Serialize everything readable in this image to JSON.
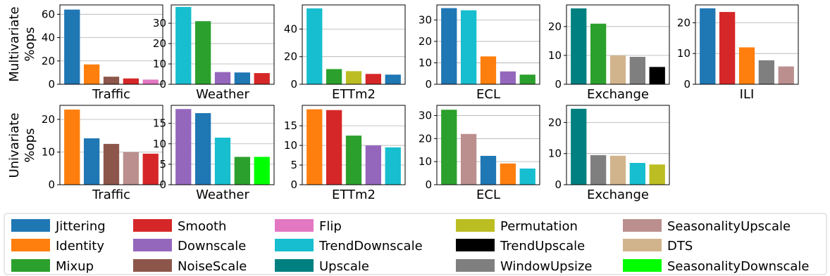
{
  "colors": {
    "Jittering": "#1f77b4",
    "Identity": "#ff7f0e",
    "Mixup": "#2ca02c",
    "Smooth": "#d62728",
    "Downscale": "#9467bd",
    "NoiseScale": "#8c564b",
    "Flip": "#e377c2",
    "TrendDownscale": "#17becf",
    "Upscale": "#008080",
    "Permutation": "#bcbd22",
    "TrendUpscale": "#000000",
    "WindowUpsize": "#7f7f7f",
    "SeasonalityUpscale": "#bc8f8f",
    "DTS": "#d2b48c",
    "SeasonalityDownscale": "#00ff00"
  },
  "row_labels": {
    "multivariate": [
      "Multivariate",
      "%ops"
    ],
    "univariate": [
      "Univariate",
      "%ops"
    ]
  },
  "legend": {
    "columns": [
      [
        "Jittering",
        "Identity",
        "Mixup"
      ],
      [
        "Smooth",
        "Downscale",
        "NoiseScale"
      ],
      [
        "Flip",
        "TrendDownscale",
        "Upscale"
      ],
      [
        "Permutation",
        "TrendUpscale",
        "WindowUpsize"
      ],
      [
        "SeasonalityUpscale",
        "DTS",
        "SeasonalityDownscale"
      ]
    ]
  },
  "chart_data": [
    {
      "type": "bar",
      "row": "multivariate",
      "xlabel": "Traffic",
      "ylim": [
        0,
        68
      ],
      "yticks": [
        0,
        20,
        40,
        60
      ],
      "categories": [
        "Jittering",
        "Identity",
        "NoiseScale",
        "Smooth",
        "Flip"
      ],
      "values": [
        64,
        17,
        6.5,
        5,
        4
      ]
    },
    {
      "type": "bar",
      "row": "multivariate",
      "xlabel": "Weather",
      "ylim": [
        0,
        39
      ],
      "yticks": [
        0,
        10,
        20,
        30
      ],
      "categories": [
        "TrendDownscale",
        "Mixup",
        "Downscale",
        "Jittering",
        "Smooth"
      ],
      "values": [
        38,
        31,
        6,
        5.8,
        5.5
      ]
    },
    {
      "type": "bar",
      "row": "multivariate",
      "xlabel": "ETTm2",
      "ylim": [
        0,
        57.5
      ],
      "yticks": [
        0,
        20,
        40
      ],
      "categories": [
        "TrendDownscale",
        "Mixup",
        "Permutation",
        "Smooth",
        "Jittering"
      ],
      "values": [
        55,
        11,
        9.5,
        7.5,
        7
      ]
    },
    {
      "type": "bar",
      "row": "multivariate",
      "xlabel": "ECL",
      "ylim": [
        0,
        37
      ],
      "yticks": [
        0,
        10,
        20,
        30
      ],
      "categories": [
        "Jittering",
        "TrendDownscale",
        "Identity",
        "Downscale",
        "Mixup"
      ],
      "values": [
        35.5,
        34.5,
        13,
        6,
        4.5
      ]
    },
    {
      "type": "bar",
      "row": "multivariate",
      "xlabel": "Exchange",
      "ylim": [
        0,
        27.5
      ],
      "yticks": [
        0,
        10,
        20
      ],
      "categories": [
        "Upscale",
        "Mixup",
        "DTS",
        "WindowUpsize",
        "TrendUpscale"
      ],
      "values": [
        26.3,
        21,
        10,
        9.5,
        6
      ]
    },
    {
      "type": "bar",
      "row": "multivariate",
      "xlabel": "ILI",
      "ylim": [
        0,
        25.8
      ],
      "yticks": [
        0,
        10,
        20
      ],
      "categories": [
        "Jittering",
        "Smooth",
        "Identity",
        "WindowUpsize",
        "SeasonalityUpscale"
      ],
      "values": [
        24.7,
        23.5,
        12,
        7.8,
        5.8
      ]
    },
    {
      "type": "bar",
      "row": "univariate",
      "xlabel": "Traffic",
      "ylim": [
        0,
        24.3
      ],
      "yticks": [
        0,
        10,
        20
      ],
      "categories": [
        "Identity",
        "Jittering",
        "NoiseScale",
        "SeasonalityUpscale",
        "Smooth"
      ],
      "values": [
        23,
        14.2,
        12.5,
        10,
        9.5
      ]
    },
    {
      "type": "bar",
      "row": "univariate",
      "xlabel": "Weather",
      "ylim": [
        0,
        19.4
      ],
      "yticks": [
        0,
        5,
        10,
        15
      ],
      "categories": [
        "Downscale",
        "Jittering",
        "TrendDownscale",
        "Mixup",
        "SeasonalityDownscale"
      ],
      "values": [
        18.5,
        17.5,
        11.5,
        6.8,
        6.8
      ]
    },
    {
      "type": "bar",
      "row": "univariate",
      "xlabel": "ETTm2",
      "ylim": [
        0,
        20.2
      ],
      "yticks": [
        0,
        5,
        10,
        15
      ],
      "categories": [
        "Identity",
        "Smooth",
        "Mixup",
        "Downscale",
        "TrendDownscale"
      ],
      "values": [
        19.2,
        19,
        12.5,
        10,
        9.5
      ]
    },
    {
      "type": "bar",
      "row": "univariate",
      "xlabel": "ECL",
      "ylim": [
        0,
        34.4
      ],
      "yticks": [
        0,
        10,
        20,
        30
      ],
      "categories": [
        "Mixup",
        "SeasonalityUpscale",
        "Jittering",
        "Identity",
        "TrendDownscale"
      ],
      "values": [
        32.5,
        22,
        12.5,
        9.2,
        7
      ]
    },
    {
      "type": "bar",
      "row": "univariate",
      "xlabel": "Exchange",
      "ylim": [
        0,
        25.5
      ],
      "yticks": [
        0,
        10,
        20
      ],
      "categories": [
        "Upscale",
        "WindowUpsize",
        "DTS",
        "TrendDownscale",
        "Permutation"
      ],
      "values": [
        24.4,
        9.5,
        9.3,
        7,
        6.5
      ]
    }
  ]
}
